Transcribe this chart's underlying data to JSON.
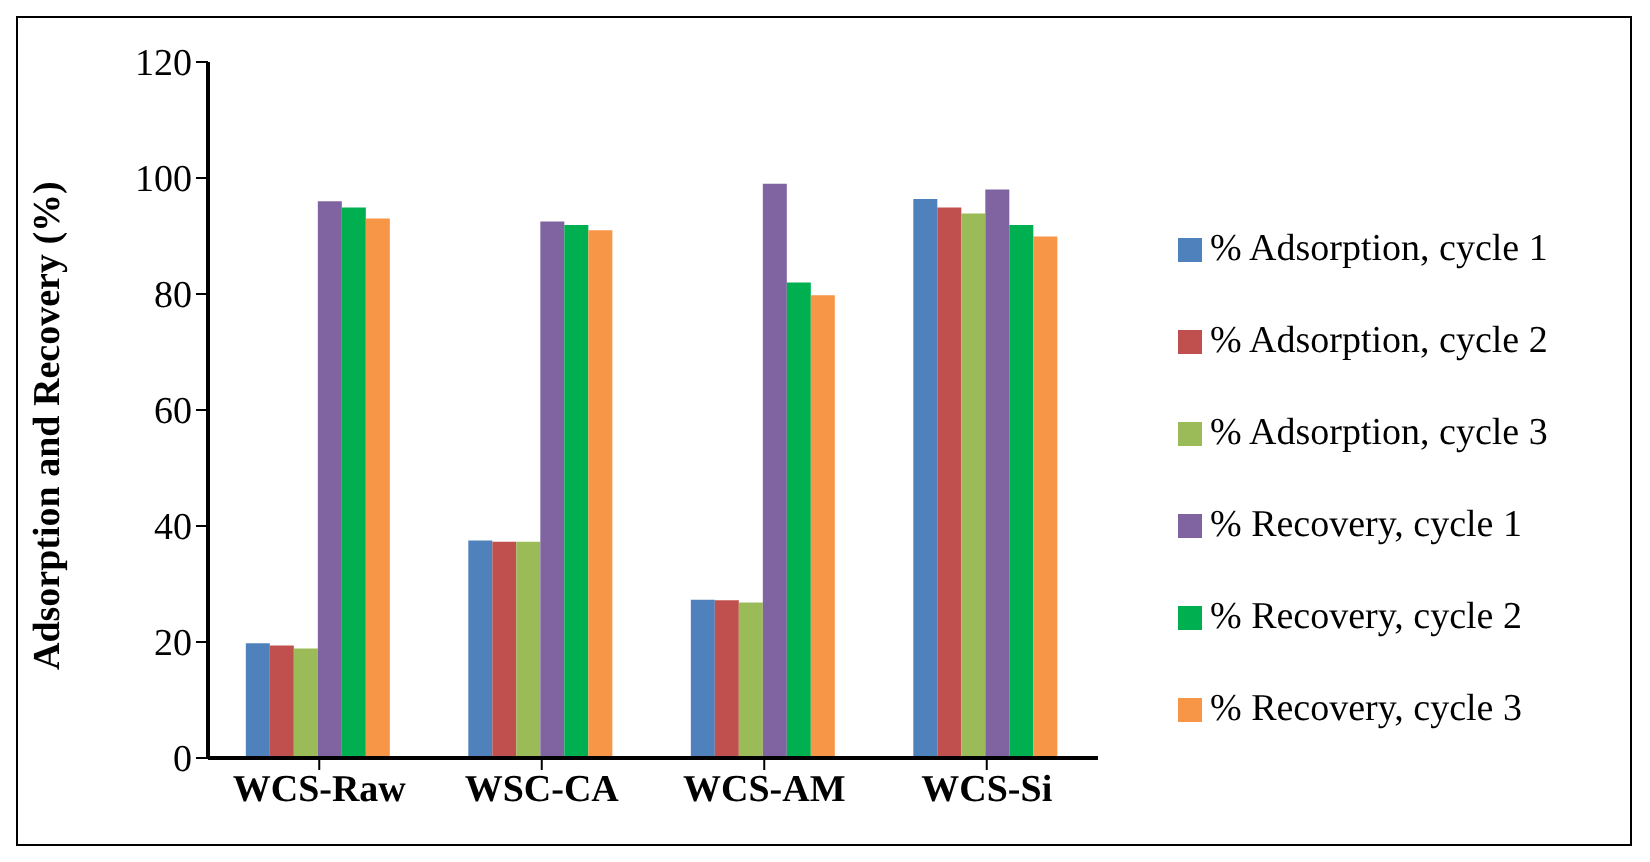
{
  "chart_data": {
    "type": "bar",
    "ylabel": "Adsorption and Recovery (%)",
    "categories": [
      "WCS-Raw",
      "WSC-CA",
      "WCS-AM",
      "WCS-Si"
    ],
    "series": [
      {
        "name": "% Adsorption, cycle 1",
        "color": "#4f81bd",
        "values": [
          19.8,
          37.5,
          27.3,
          96.4
        ]
      },
      {
        "name": "% Adsorption, cycle 2",
        "color": "#c0504d",
        "values": [
          19.4,
          37.3,
          27.2,
          94.9
        ]
      },
      {
        "name": "% Adsorption, cycle 3",
        "color": "#9bbb59",
        "values": [
          18.9,
          37.3,
          26.8,
          93.9
        ]
      },
      {
        "name": "% Recovery, cycle 1",
        "color": "#8064a2",
        "values": [
          96,
          92.5,
          99,
          98
        ]
      },
      {
        "name": "% Recovery, cycle 2",
        "color": "#00b050",
        "values": [
          94.9,
          91.9,
          82,
          91.9
        ]
      },
      {
        "name": "% Recovery, cycle 3",
        "color": "#f79646",
        "values": [
          93,
          91,
          79.8,
          89.9
        ]
      }
    ],
    "ylim": [
      0,
      120
    ],
    "yticks": [
      0,
      20,
      40,
      60,
      80,
      100,
      120
    ],
    "grid": false,
    "legend": "right"
  }
}
